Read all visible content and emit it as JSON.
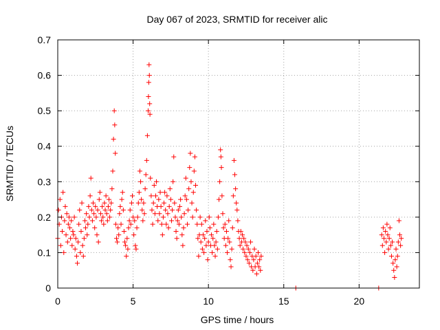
{
  "chart_data": {
    "type": "scatter",
    "title": "Day 067 of 2023, SRMTID for receiver alic",
    "xlabel": "GPS time / hours",
    "ylabel": "SRMTID / TECUs",
    "xlim": [
      0,
      24
    ],
    "ylim": [
      0,
      0.7
    ],
    "x_ticks": [
      0,
      5,
      10,
      15,
      20
    ],
    "x_tick_labels": [
      "0",
      "5",
      "10",
      "15",
      "20"
    ],
    "y_ticks": [
      0,
      0.1,
      0.2,
      0.3,
      0.4,
      0.5,
      0.6,
      0.7
    ],
    "y_tick_labels": [
      "0",
      "0.1",
      "0.2",
      "0.3",
      "0.4",
      "0.5",
      "0.6",
      "0.7"
    ],
    "grid": true,
    "marker": "+",
    "color": "#ff0000",
    "series": [
      {
        "name": "SRMTID",
        "points": [
          [
            0.0,
            0.14
          ],
          [
            0.05,
            0.22
          ],
          [
            0.1,
            0.18
          ],
          [
            0.15,
            0.25
          ],
          [
            0.2,
            0.12
          ],
          [
            0.25,
            0.2
          ],
          [
            0.3,
            0.16
          ],
          [
            0.35,
            0.27
          ],
          [
            0.4,
            0.1
          ],
          [
            0.45,
            0.19
          ],
          [
            0.5,
            0.23
          ],
          [
            0.55,
            0.15
          ],
          [
            0.6,
            0.21
          ],
          [
            0.65,
            0.13
          ],
          [
            0.7,
            0.18
          ],
          [
            0.75,
            0.2
          ],
          [
            0.8,
            0.17
          ],
          [
            0.85,
            0.14
          ],
          [
            0.9,
            0.19
          ],
          [
            0.95,
            0.12
          ],
          [
            1.0,
            0.16
          ],
          [
            1.05,
            0.15
          ],
          [
            1.1,
            0.2
          ],
          [
            1.15,
            0.11
          ],
          [
            1.2,
            0.14
          ],
          [
            1.25,
            0.09
          ],
          [
            1.3,
            0.07
          ],
          [
            1.35,
            0.13
          ],
          [
            1.4,
            0.18
          ],
          [
            1.45,
            0.22
          ],
          [
            1.5,
            0.1
          ],
          [
            1.55,
            0.16
          ],
          [
            1.6,
            0.24
          ],
          [
            1.65,
            0.12
          ],
          [
            1.7,
            0.09
          ],
          [
            1.75,
            0.14
          ],
          [
            1.8,
            0.19
          ],
          [
            1.85,
            0.17
          ],
          [
            1.9,
            0.21
          ],
          [
            1.95,
            0.15
          ],
          [
            2.0,
            0.18
          ],
          [
            2.05,
            0.23
          ],
          [
            2.1,
            0.2
          ],
          [
            2.15,
            0.26
          ],
          [
            2.2,
            0.31
          ],
          [
            2.25,
            0.22
          ],
          [
            2.3,
            0.19
          ],
          [
            2.35,
            0.24
          ],
          [
            2.4,
            0.21
          ],
          [
            2.45,
            0.17
          ],
          [
            2.5,
            0.23
          ],
          [
            2.55,
            0.2
          ],
          [
            2.6,
            0.15
          ],
          [
            2.65,
            0.22
          ],
          [
            2.7,
            0.13
          ],
          [
            2.75,
            0.25
          ],
          [
            2.8,
            0.27
          ],
          [
            2.85,
            0.21
          ],
          [
            2.9,
            0.19
          ],
          [
            2.95,
            0.23
          ],
          [
            3.0,
            0.2
          ],
          [
            3.05,
            0.18
          ],
          [
            3.1,
            0.24
          ],
          [
            3.15,
            0.22
          ],
          [
            3.2,
            0.26
          ],
          [
            3.25,
            0.21
          ],
          [
            3.3,
            0.19
          ],
          [
            3.35,
            0.23
          ],
          [
            3.4,
            0.25
          ],
          [
            3.45,
            0.2
          ],
          [
            3.5,
            0.22
          ],
          [
            3.55,
            0.24
          ],
          [
            3.6,
            0.28
          ],
          [
            3.65,
            0.33
          ],
          [
            3.7,
            0.42
          ],
          [
            3.75,
            0.5
          ],
          [
            3.78,
            0.46
          ],
          [
            3.82,
            0.38
          ],
          [
            3.85,
            0.18
          ],
          [
            3.9,
            0.14
          ],
          [
            3.95,
            0.13
          ],
          [
            4.0,
            0.17
          ],
          [
            4.05,
            0.15
          ],
          [
            4.1,
            0.21
          ],
          [
            4.15,
            0.23
          ],
          [
            4.2,
            0.18
          ],
          [
            4.25,
            0.25
          ],
          [
            4.3,
            0.27
          ],
          [
            4.35,
            0.22
          ],
          [
            4.4,
            0.16
          ],
          [
            4.45,
            0.13
          ],
          [
            4.5,
            0.12
          ],
          [
            4.55,
            0.09
          ],
          [
            4.6,
            0.14
          ],
          [
            4.65,
            0.11
          ],
          [
            4.7,
            0.17
          ],
          [
            4.75,
            0.19
          ],
          [
            4.8,
            0.22
          ],
          [
            4.85,
            0.18
          ],
          [
            4.9,
            0.24
          ],
          [
            4.95,
            0.26
          ],
          [
            5.0,
            0.2
          ],
          [
            5.05,
            0.15
          ],
          [
            5.1,
            0.19
          ],
          [
            5.15,
            0.12
          ],
          [
            5.2,
            0.11
          ],
          [
            5.25,
            0.17
          ],
          [
            5.3,
            0.2
          ],
          [
            5.35,
            0.24
          ],
          [
            5.4,
            0.27
          ],
          [
            5.45,
            0.33
          ],
          [
            5.5,
            0.3
          ],
          [
            5.55,
            0.25
          ],
          [
            5.6,
            0.22
          ],
          [
            5.65,
            0.19
          ],
          [
            5.7,
            0.24
          ],
          [
            5.75,
            0.21
          ],
          [
            5.8,
            0.28
          ],
          [
            5.85,
            0.32
          ],
          [
            5.9,
            0.36
          ],
          [
            5.95,
            0.43
          ],
          [
            6.0,
            0.5
          ],
          [
            6.02,
            0.54
          ],
          [
            6.04,
            0.58
          ],
          [
            6.06,
            0.63
          ],
          [
            6.08,
            0.6
          ],
          [
            6.1,
            0.52
          ],
          [
            6.12,
            0.49
          ],
          [
            6.15,
            0.31
          ],
          [
            6.2,
            0.26
          ],
          [
            6.25,
            0.22
          ],
          [
            6.3,
            0.18
          ],
          [
            6.35,
            0.24
          ],
          [
            6.4,
            0.29
          ],
          [
            6.45,
            0.21
          ],
          [
            6.5,
            0.26
          ],
          [
            6.55,
            0.3
          ],
          [
            6.6,
            0.23
          ],
          [
            6.65,
            0.19
          ],
          [
            6.7,
            0.25
          ],
          [
            6.75,
            0.21
          ],
          [
            6.8,
            0.27
          ],
          [
            6.85,
            0.23
          ],
          [
            6.9,
            0.18
          ],
          [
            6.95,
            0.15
          ],
          [
            7.0,
            0.2
          ],
          [
            7.05,
            0.24
          ],
          [
            7.1,
            0.27
          ],
          [
            7.15,
            0.22
          ],
          [
            7.2,
            0.18
          ],
          [
            7.25,
            0.26
          ],
          [
            7.3,
            0.21
          ],
          [
            7.35,
            0.17
          ],
          [
            7.4,
            0.23
          ],
          [
            7.45,
            0.28
          ],
          [
            7.5,
            0.25
          ],
          [
            7.55,
            0.19
          ],
          [
            7.6,
            0.22
          ],
          [
            7.65,
            0.3
          ],
          [
            7.7,
            0.37
          ],
          [
            7.75,
            0.24
          ],
          [
            7.8,
            0.2
          ],
          [
            7.85,
            0.16
          ],
          [
            7.9,
            0.14
          ],
          [
            7.95,
            0.19
          ],
          [
            8.0,
            0.22
          ],
          [
            8.05,
            0.18
          ],
          [
            8.1,
            0.23
          ],
          [
            8.15,
            0.25
          ],
          [
            8.2,
            0.2
          ],
          [
            8.25,
            0.15
          ],
          [
            8.3,
            0.12
          ],
          [
            8.35,
            0.17
          ],
          [
            8.4,
            0.21
          ],
          [
            8.45,
            0.26
          ],
          [
            8.5,
            0.31
          ],
          [
            8.55,
            0.25
          ],
          [
            8.6,
            0.18
          ],
          [
            8.65,
            0.22
          ],
          [
            8.7,
            0.28
          ],
          [
            8.75,
            0.34
          ],
          [
            8.8,
            0.38
          ],
          [
            8.85,
            0.3
          ],
          [
            8.9,
            0.24
          ],
          [
            8.95,
            0.2
          ],
          [
            9.0,
            0.27
          ],
          [
            9.05,
            0.33
          ],
          [
            9.1,
            0.37
          ],
          [
            9.15,
            0.29
          ],
          [
            9.2,
            0.22
          ],
          [
            9.25,
            0.18
          ],
          [
            9.3,
            0.14
          ],
          [
            9.35,
            0.09
          ],
          [
            9.4,
            0.15
          ],
          [
            9.45,
            0.2
          ],
          [
            9.5,
            0.13
          ],
          [
            9.55,
            0.18
          ],
          [
            9.6,
            0.11
          ],
          [
            9.65,
            0.15
          ],
          [
            9.7,
            0.1
          ],
          [
            9.75,
            0.14
          ],
          [
            9.8,
            0.19
          ],
          [
            9.85,
            0.12
          ],
          [
            9.9,
            0.16
          ],
          [
            9.95,
            0.08
          ],
          [
            10.0,
            0.13
          ],
          [
            10.05,
            0.2
          ],
          [
            10.1,
            0.17
          ],
          [
            10.15,
            0.12
          ],
          [
            10.2,
            0.15
          ],
          [
            10.25,
            0.1
          ],
          [
            10.3,
            0.14
          ],
          [
            10.35,
            0.18
          ],
          [
            10.4,
            0.12
          ],
          [
            10.45,
            0.09
          ],
          [
            10.5,
            0.13
          ],
          [
            10.55,
            0.16
          ],
          [
            10.6,
            0.11
          ],
          [
            10.65,
            0.2
          ],
          [
            10.7,
            0.25
          ],
          [
            10.75,
            0.3
          ],
          [
            10.8,
            0.39
          ],
          [
            10.83,
            0.37
          ],
          [
            10.86,
            0.34
          ],
          [
            10.9,
            0.26
          ],
          [
            10.95,
            0.21
          ],
          [
            11.0,
            0.17
          ],
          [
            11.05,
            0.14
          ],
          [
            11.1,
            0.18
          ],
          [
            11.15,
            0.12
          ],
          [
            11.2,
            0.16
          ],
          [
            11.25,
            0.1
          ],
          [
            11.3,
            0.14
          ],
          [
            11.35,
            0.19
          ],
          [
            11.4,
            0.13
          ],
          [
            11.45,
            0.08
          ],
          [
            11.5,
            0.06
          ],
          [
            11.55,
            0.11
          ],
          [
            11.6,
            0.17
          ],
          [
            11.65,
            0.26
          ],
          [
            11.7,
            0.36
          ],
          [
            11.75,
            0.32
          ],
          [
            11.8,
            0.28
          ],
          [
            11.85,
            0.24
          ],
          [
            11.9,
            0.22
          ],
          [
            11.95,
            0.19
          ],
          [
            12.0,
            0.16
          ],
          [
            12.05,
            0.14
          ],
          [
            12.1,
            0.12
          ],
          [
            12.15,
            0.16
          ],
          [
            12.2,
            0.13
          ],
          [
            12.25,
            0.15
          ],
          [
            12.3,
            0.11
          ],
          [
            12.35,
            0.14
          ],
          [
            12.4,
            0.1
          ],
          [
            12.45,
            0.13
          ],
          [
            12.5,
            0.09
          ],
          [
            12.55,
            0.12
          ],
          [
            12.6,
            0.08
          ],
          [
            12.65,
            0.11
          ],
          [
            12.7,
            0.07
          ],
          [
            12.75,
            0.1
          ],
          [
            12.8,
            0.13
          ],
          [
            12.85,
            0.06
          ],
          [
            12.9,
            0.09
          ],
          [
            12.95,
            0.05
          ],
          [
            13.0,
            0.08
          ],
          [
            13.05,
            0.11
          ],
          [
            13.1,
            0.06
          ],
          [
            13.15,
            0.09
          ],
          [
            13.2,
            0.04
          ],
          [
            13.25,
            0.07
          ],
          [
            13.3,
            0.1
          ],
          [
            13.35,
            0.06
          ],
          [
            13.4,
            0.08
          ],
          [
            13.45,
            0.05
          ],
          [
            13.5,
            0.09
          ],
          [
            15.8,
            0.0
          ],
          [
            21.3,
            0.0
          ],
          [
            21.5,
            0.15
          ],
          [
            21.55,
            0.12
          ],
          [
            21.6,
            0.17
          ],
          [
            21.65,
            0.14
          ],
          [
            21.7,
            0.1
          ],
          [
            21.75,
            0.16
          ],
          [
            21.8,
            0.13
          ],
          [
            21.85,
            0.18
          ],
          [
            21.9,
            0.15
          ],
          [
            21.95,
            0.11
          ],
          [
            22.0,
            0.14
          ],
          [
            22.05,
            0.17
          ],
          [
            22.1,
            0.12
          ],
          [
            22.15,
            0.09
          ],
          [
            22.2,
            0.13
          ],
          [
            22.25,
            0.07
          ],
          [
            22.3,
            0.05
          ],
          [
            22.35,
            0.03
          ],
          [
            22.4,
            0.08
          ],
          [
            22.45,
            0.11
          ],
          [
            22.5,
            0.06
          ],
          [
            22.55,
            0.09
          ],
          [
            22.6,
            0.13
          ],
          [
            22.65,
            0.19
          ],
          [
            22.7,
            0.15
          ],
          [
            22.75,
            0.12
          ],
          [
            22.8,
            0.14
          ]
        ]
      }
    ]
  }
}
